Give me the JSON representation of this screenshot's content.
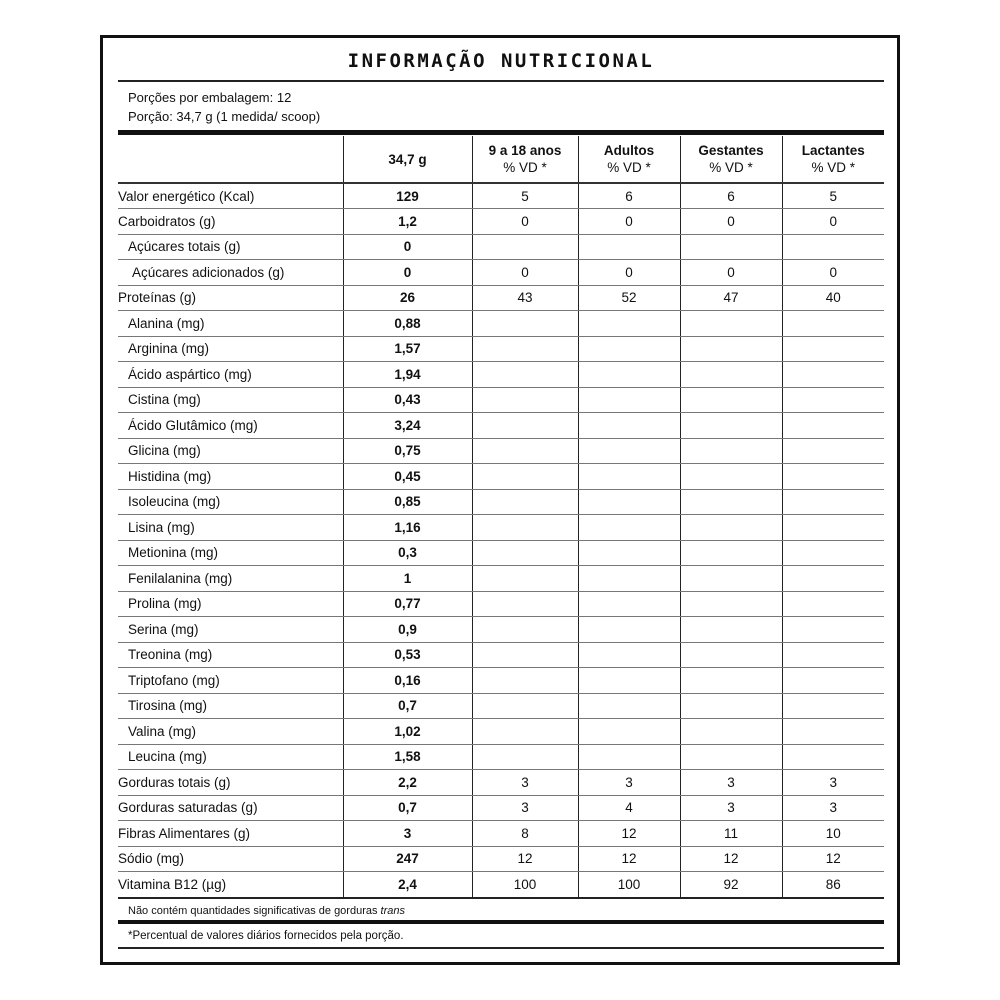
{
  "title": "INFORMAÇÃO NUTRICIONAL",
  "servings_per_package": "Porções por embalagem: 12",
  "serving_size": "Porção: 34,7 g (1 medida/ scoop)",
  "headers": [
    {
      "l1": "",
      "l2": ""
    },
    {
      "l1": "34,7 g",
      "l2": ""
    },
    {
      "l1": "9 a 18 anos",
      "l2": "% VD *"
    },
    {
      "l1": "Adultos",
      "l2": "% VD *"
    },
    {
      "l1": "Gestantes",
      "l2": "% VD *"
    },
    {
      "l1": "Lactantes",
      "l2": "% VD *"
    }
  ],
  "rows": [
    {
      "name": "Valor energético (Kcal)",
      "indent": 0,
      "v": [
        "129",
        "5",
        "6",
        "6",
        "5"
      ]
    },
    {
      "name": "Carboidratos (g)",
      "indent": 0,
      "v": [
        "1,2",
        "0",
        "0",
        "0",
        "0"
      ]
    },
    {
      "name": "Açúcares totais (g)",
      "indent": 1,
      "v": [
        "0",
        "",
        "",
        "",
        ""
      ]
    },
    {
      "name": "Açúcares adicionados (g)",
      "indent": 2,
      "v": [
        "0",
        "0",
        "0",
        "0",
        "0"
      ]
    },
    {
      "name": "Proteínas (g)",
      "indent": 0,
      "v": [
        "26",
        "43",
        "52",
        "47",
        "40"
      ]
    },
    {
      "name": "Alanina (mg)",
      "indent": 1,
      "v": [
        "0,88",
        "",
        "",
        "",
        ""
      ]
    },
    {
      "name": "Arginina (mg)",
      "indent": 1,
      "v": [
        "1,57",
        "",
        "",
        "",
        ""
      ]
    },
    {
      "name": "Ácido aspártico (mg)",
      "indent": 1,
      "v": [
        "1,94",
        "",
        "",
        "",
        ""
      ]
    },
    {
      "name": "Cistina (mg)",
      "indent": 1,
      "v": [
        "0,43",
        "",
        "",
        "",
        ""
      ]
    },
    {
      "name": "Ácido Glutâmico (mg)",
      "indent": 1,
      "v": [
        "3,24",
        "",
        "",
        "",
        ""
      ]
    },
    {
      "name": "Glicina (mg)",
      "indent": 1,
      "v": [
        "0,75",
        "",
        "",
        "",
        ""
      ]
    },
    {
      "name": "Histidina (mg)",
      "indent": 1,
      "v": [
        "0,45",
        "",
        "",
        "",
        ""
      ]
    },
    {
      "name": "Isoleucina (mg)",
      "indent": 1,
      "v": [
        "0,85",
        "",
        "",
        "",
        ""
      ]
    },
    {
      "name": "Lisina (mg)",
      "indent": 1,
      "v": [
        "1,16",
        "",
        "",
        "",
        ""
      ]
    },
    {
      "name": "Metionina (mg)",
      "indent": 1,
      "v": [
        "0,3",
        "",
        "",
        "",
        ""
      ]
    },
    {
      "name": "Fenilalanina (mg)",
      "indent": 1,
      "v": [
        "1",
        "",
        "",
        "",
        ""
      ]
    },
    {
      "name": "Prolina (mg)",
      "indent": 1,
      "v": [
        "0,77",
        "",
        "",
        "",
        ""
      ]
    },
    {
      "name": "Serina (mg)",
      "indent": 1,
      "v": [
        "0,9",
        "",
        "",
        "",
        ""
      ]
    },
    {
      "name": "Treonina (mg)",
      "indent": 1,
      "v": [
        "0,53",
        "",
        "",
        "",
        ""
      ]
    },
    {
      "name": "Triptofano (mg)",
      "indent": 1,
      "v": [
        "0,16",
        "",
        "",
        "",
        ""
      ]
    },
    {
      "name": "Tirosina (mg)",
      "indent": 1,
      "v": [
        "0,7",
        "",
        "",
        "",
        ""
      ]
    },
    {
      "name": "Valina (mg)",
      "indent": 1,
      "v": [
        "1,02",
        "",
        "",
        "",
        ""
      ]
    },
    {
      "name": "Leucina (mg)",
      "indent": 1,
      "v": [
        "1,58",
        "",
        "",
        "",
        ""
      ]
    },
    {
      "name": "Gorduras totais (g)",
      "indent": 0,
      "v": [
        "2,2",
        "3",
        "3",
        "3",
        "3"
      ]
    },
    {
      "name": "Gorduras saturadas (g)",
      "indent": 0,
      "v": [
        "0,7",
        "3",
        "4",
        "3",
        "3"
      ]
    },
    {
      "name": "Fibras Alimentares (g)",
      "indent": 0,
      "v": [
        "3",
        "8",
        "12",
        "11",
        "10"
      ]
    },
    {
      "name": "Sódio (mg)",
      "indent": 0,
      "v": [
        "247",
        "12",
        "12",
        "12",
        "12"
      ]
    },
    {
      "name": "Vitamina B12 (µg)",
      "indent": 0,
      "v": [
        "2,4",
        "100",
        "100",
        "92",
        "86"
      ]
    }
  ],
  "footnote_trans": "Não contém quantidades significativas de gorduras",
  "footnote_trans_italic": "trans",
  "footnote_vd": "*Percentual de valores diários fornecidos pela porção."
}
